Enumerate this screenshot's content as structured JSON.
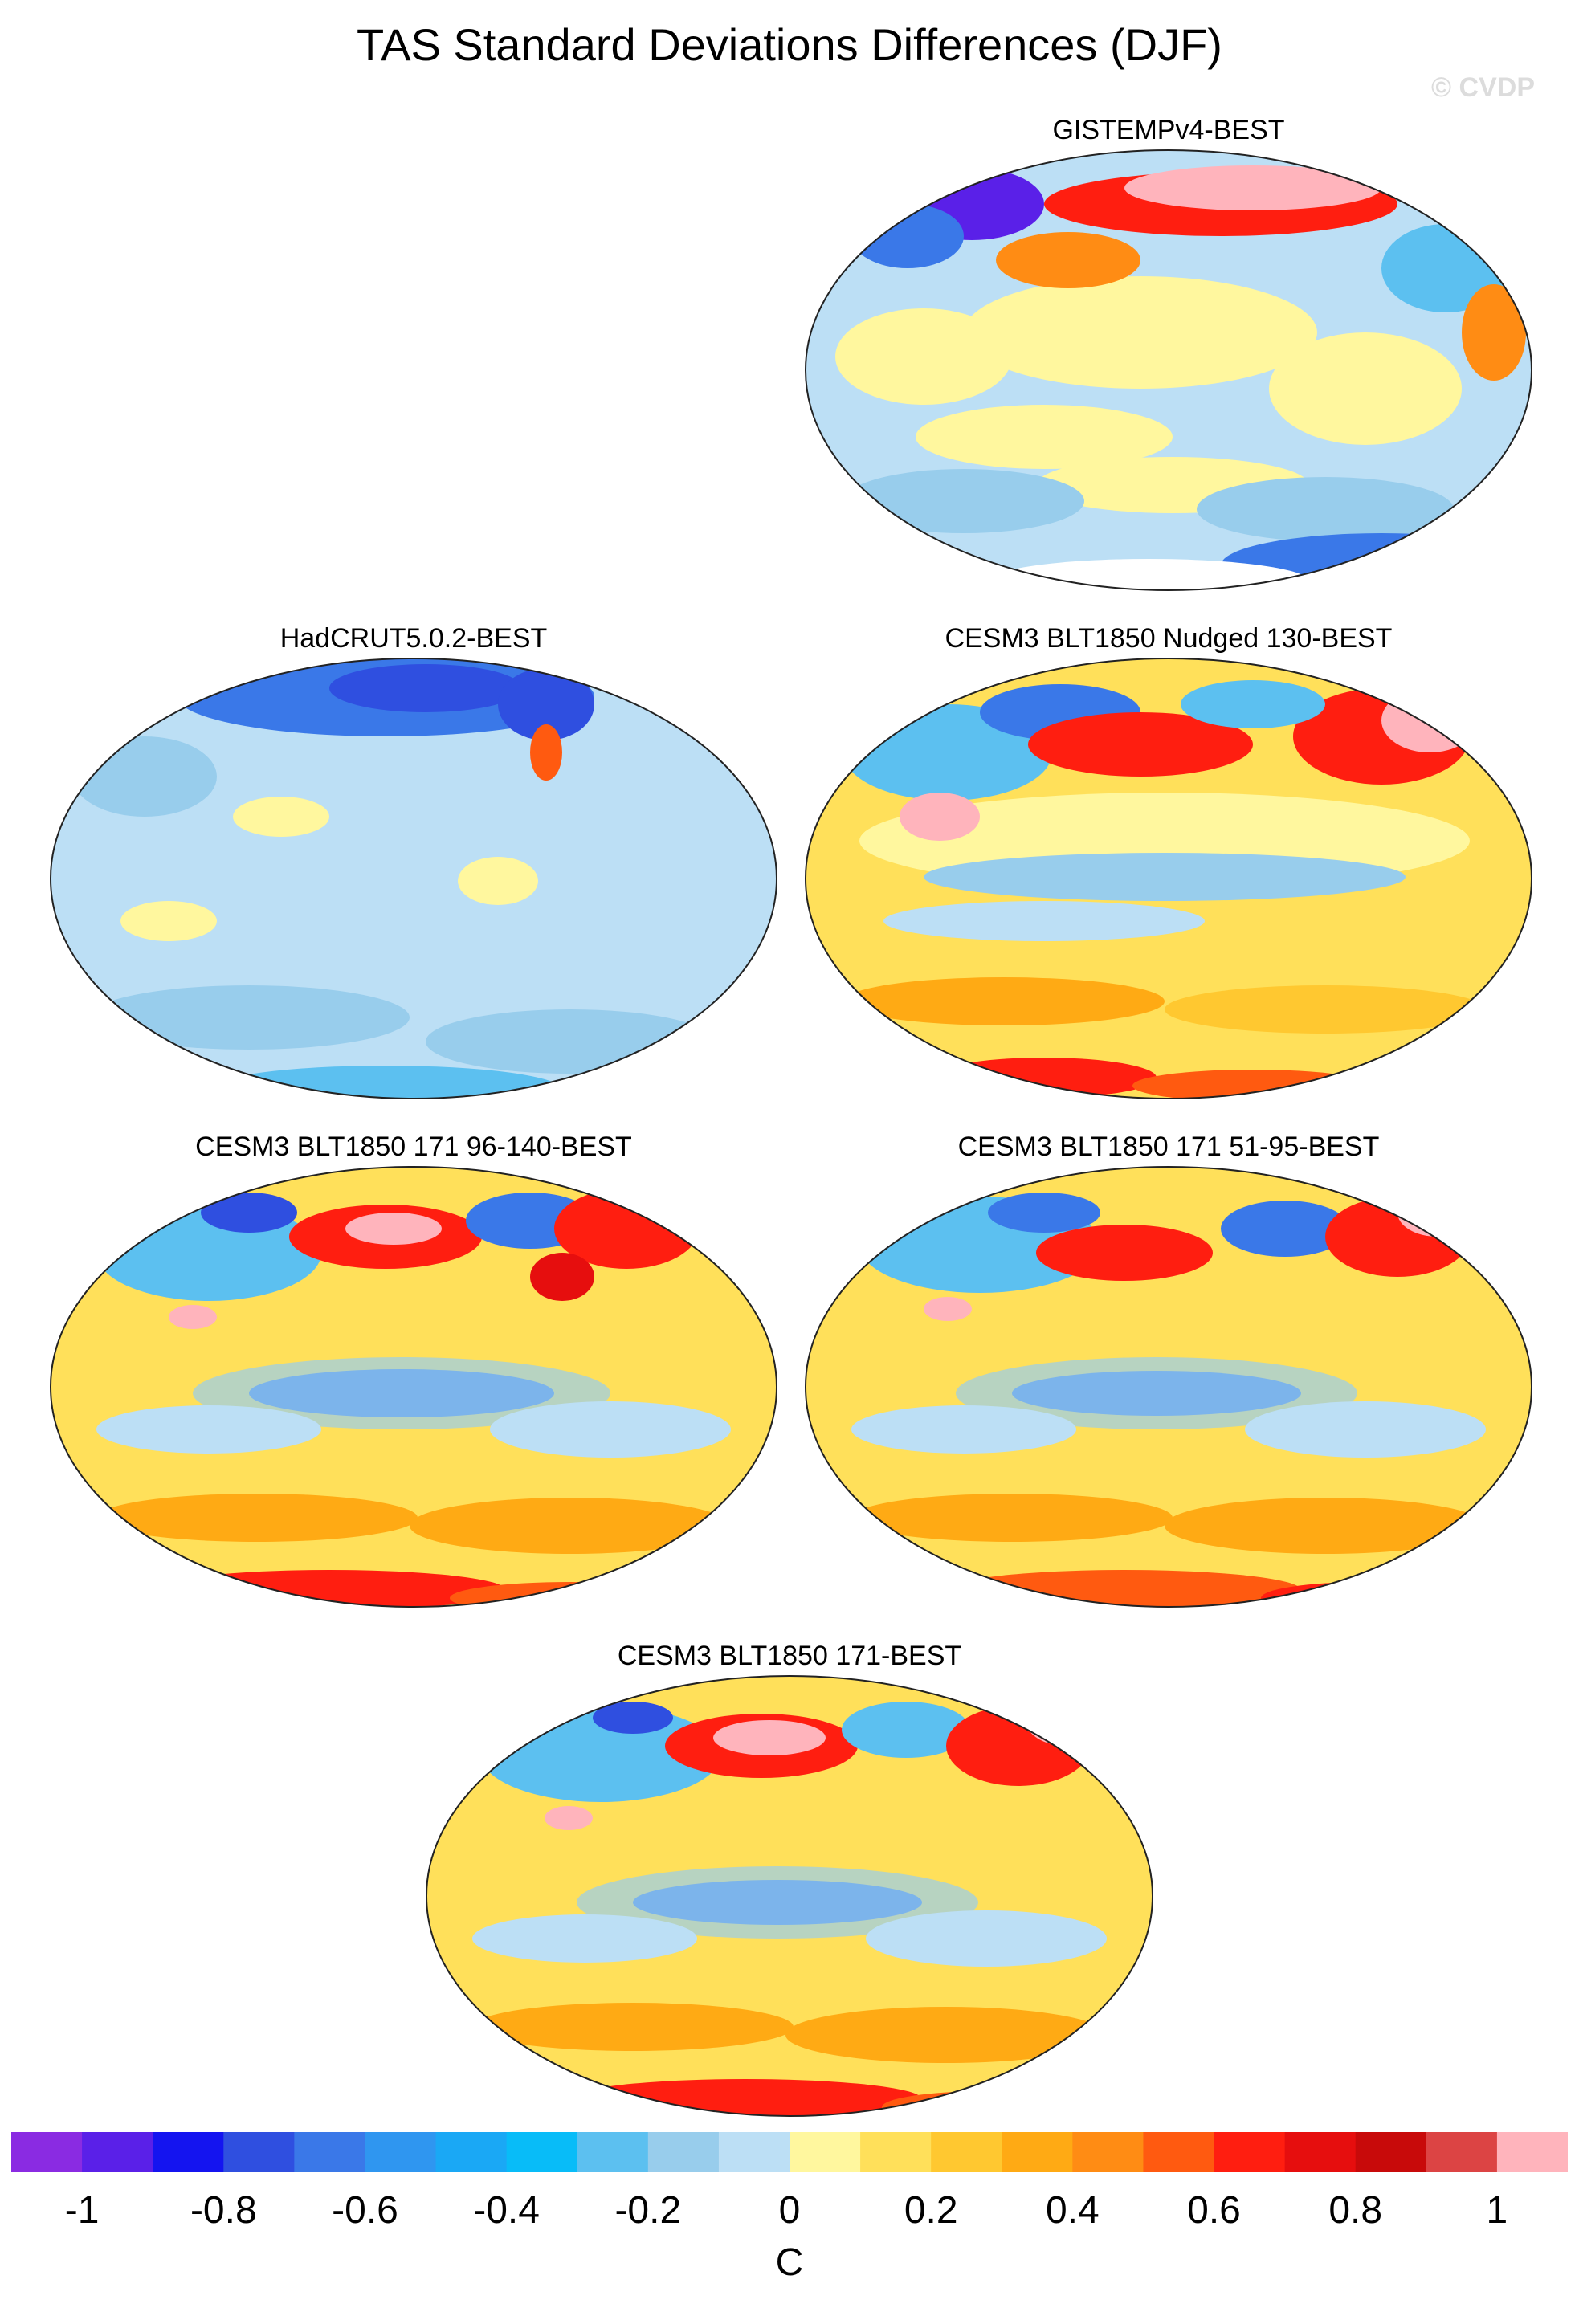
{
  "title": "TAS Standard Deviations Differences (DJF)",
  "watermark": "© CVDP",
  "panels": [
    {
      "id": "gistemp",
      "title": "GISTEMPv4-BEST"
    },
    {
      "id": "hadcrut",
      "title": "HadCRUT5.0.2-BEST"
    },
    {
      "id": "nudged",
      "title": "CESM3 BLT1850 Nudged 130-BEST"
    },
    {
      "id": "cesm-96-140",
      "title": "CESM3 BLT1850 171 96-140-BEST"
    },
    {
      "id": "cesm-51-95",
      "title": "CESM3 BLT1850 171 51-95-BEST"
    },
    {
      "id": "cesm-171",
      "title": "CESM3 BLT1850 171-BEST"
    }
  ],
  "colorbar": {
    "unit": "C",
    "ticks": [
      "-1",
      "-0.8",
      "-0.6",
      "-0.4",
      "-0.2",
      "0",
      "0.2",
      "0.4",
      "0.6",
      "0.8",
      "1"
    ],
    "colors": [
      "#8a2be2",
      "#5a20e8",
      "#1414f0",
      "#2f4fe0",
      "#3a78e8",
      "#2f96f0",
      "#1aa8f5",
      "#08bcf8",
      "#5cc0f0",
      "#98cdec",
      "#bcdff5",
      "#fff79e",
      "#ffe05a",
      "#ffc830",
      "#ffaa14",
      "#ff8c14",
      "#ff5a10",
      "#ff1e10",
      "#e60e0e",
      "#c80a0a",
      "#dc4444",
      "#ffb4bc"
    ]
  }
}
